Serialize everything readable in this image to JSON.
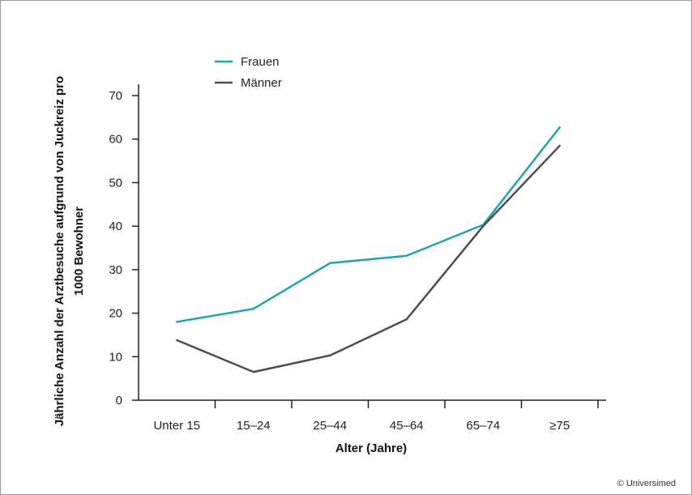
{
  "chart_data": {
    "type": "line",
    "categories": [
      "Unter 15",
      "15–24",
      "25–44",
      "45–64",
      "65–74",
      "≥75"
    ],
    "series": [
      {
        "name": "Frauen",
        "values": [
          18,
          21,
          31.5,
          33.2,
          40.3,
          62.7
        ],
        "color": "#1fa3ad"
      },
      {
        "name": "Männer",
        "values": [
          13.8,
          6.5,
          10.3,
          18.6,
          40.0,
          58.5
        ],
        "color": "#4d4d4f"
      }
    ],
    "xlabel": "Alter (Jahre)",
    "ylabel": "Jährliche Anzahl der Arztbesuche aufgrund von Juckreiz pro 1000 Bewohner",
    "ylabel_lines": [
      "Jährliche Anzahl der Arztbesuche aufgrund von Juckreiz pro",
      "1000 Bewohner"
    ],
    "ylim": [
      0,
      70
    ],
    "yticks": [
      0,
      10,
      20,
      30,
      40,
      50,
      60,
      70
    ],
    "grid": false,
    "legend_position": "top-left"
  },
  "credit": "© Universimed"
}
